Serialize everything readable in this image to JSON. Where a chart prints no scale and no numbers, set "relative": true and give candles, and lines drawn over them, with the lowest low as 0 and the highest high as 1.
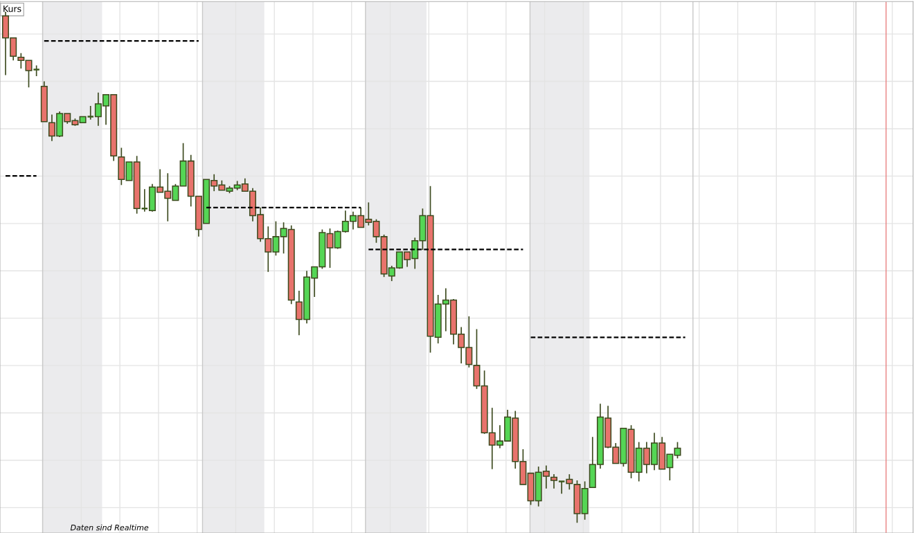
{
  "chart_data": {
    "type": "candlestick",
    "title": "Kurs",
    "relative": true,
    "grid": true,
    "annotations": [
      "Daten sind Realtime"
    ],
    "categories": [
      null,
      null,
      null,
      null,
      null,
      null,
      null,
      null,
      null,
      null,
      null,
      null,
      null,
      null,
      null,
      null,
      null,
      null,
      null,
      null,
      null,
      null,
      null,
      null,
      null,
      null,
      null,
      null,
      null,
      null,
      null,
      null,
      null,
      null,
      null,
      null,
      null,
      null,
      null,
      null,
      null,
      null,
      null,
      null,
      null,
      null,
      null,
      null,
      null,
      null,
      null,
      null,
      null,
      null,
      null,
      null,
      null,
      null,
      null,
      null,
      null,
      null,
      null,
      null,
      null,
      null,
      null,
      null,
      null,
      null,
      null,
      null,
      null,
      null,
      null,
      null,
      null,
      null,
      null,
      null,
      null,
      null,
      null,
      null,
      null,
      null,
      null,
      null,
      null,
      null,
      null,
      null,
      null,
      null,
      null,
      null,
      null,
      null,
      null,
      null,
      null,
      null,
      null,
      null,
      null,
      null,
      null,
      null,
      null,
      null,
      null,
      null,
      null,
      null,
      null,
      null,
      null,
      null
    ],
    "ohlc": [
      [
        0.992,
        1.0,
        0.876,
        0.949
      ],
      [
        0.949,
        0.949,
        0.905,
        0.913
      ],
      [
        0.911,
        0.919,
        0.889,
        0.905
      ],
      [
        0.905,
        0.905,
        0.852,
        0.885
      ],
      [
        0.887,
        0.895,
        0.874,
        0.887
      ],
      [
        0.854,
        0.864,
        0.785,
        0.785
      ],
      [
        0.783,
        0.799,
        0.747,
        0.757
      ],
      [
        0.757,
        0.805,
        0.755,
        0.801
      ],
      [
        0.801,
        0.801,
        0.781,
        0.785
      ],
      [
        0.787,
        0.791,
        0.777,
        0.779
      ],
      [
        0.783,
        0.795,
        0.783,
        0.795
      ],
      [
        0.795,
        0.816,
        0.789,
        0.795
      ],
      [
        0.795,
        0.842,
        0.777,
        0.82
      ],
      [
        0.816,
        0.838,
        0.779,
        0.838
      ],
      [
        0.838,
        0.838,
        0.708,
        0.718
      ],
      [
        0.716,
        0.734,
        0.661,
        0.672
      ],
      [
        0.67,
        0.706,
        0.67,
        0.706
      ],
      [
        0.706,
        0.718,
        0.605,
        0.615
      ],
      [
        0.615,
        0.653,
        0.609,
        0.615
      ],
      [
        0.611,
        0.663,
        0.609,
        0.657
      ],
      [
        0.657,
        0.692,
        0.647,
        0.647
      ],
      [
        0.649,
        0.684,
        0.59,
        0.635
      ],
      [
        0.631,
        0.663,
        0.631,
        0.659
      ],
      [
        0.659,
        0.743,
        0.659,
        0.708
      ],
      [
        0.708,
        0.72,
        0.619,
        0.639
      ],
      [
        0.639,
        0.639,
        0.56,
        0.574
      ],
      [
        0.586,
        0.672,
        0.586,
        0.672
      ],
      [
        0.67,
        0.682,
        0.649,
        0.659
      ],
      [
        0.661,
        0.67,
        0.651,
        0.651
      ],
      [
        0.649,
        0.659,
        0.645,
        0.655
      ],
      [
        0.655,
        0.669,
        0.651,
        0.661
      ],
      [
        0.663,
        0.674,
        0.649,
        0.649
      ],
      [
        0.649,
        0.655,
        0.59,
        0.601
      ],
      [
        0.603,
        0.617,
        0.55,
        0.556
      ],
      [
        0.556,
        0.58,
        0.491,
        0.53
      ],
      [
        0.53,
        0.59,
        0.523,
        0.56
      ],
      [
        0.56,
        0.588,
        0.527,
        0.576
      ],
      [
        0.574,
        0.582,
        0.428,
        0.436
      ],
      [
        0.432,
        0.454,
        0.367,
        0.398
      ],
      [
        0.398,
        0.493,
        0.39,
        0.481
      ],
      [
        0.479,
        0.501,
        0.442,
        0.501
      ],
      [
        0.501,
        0.574,
        0.497,
        0.568
      ],
      [
        0.566,
        0.576,
        0.499,
        0.538
      ],
      [
        0.538,
        0.572,
        0.536,
        0.57
      ],
      [
        0.57,
        0.611,
        0.568,
        0.59
      ],
      [
        0.59,
        0.609,
        0.574,
        0.601
      ],
      [
        0.601,
        0.617,
        0.578,
        0.578
      ],
      [
        0.594,
        0.627,
        0.582,
        0.588
      ],
      [
        0.59,
        0.594,
        0.548,
        0.56
      ],
      [
        0.56,
        0.564,
        0.481,
        0.487
      ],
      [
        0.483,
        0.503,
        0.473,
        0.499
      ],
      [
        0.499,
        0.53,
        0.497,
        0.53
      ],
      [
        0.53,
        0.53,
        0.501,
        0.515
      ],
      [
        0.517,
        0.558,
        0.497,
        0.552
      ],
      [
        0.552,
        0.615,
        0.534,
        0.601
      ],
      [
        0.601,
        0.659,
        0.333,
        0.365
      ],
      [
        0.363,
        0.446,
        0.351,
        0.428
      ],
      [
        0.428,
        0.459,
        0.375,
        0.436
      ],
      [
        0.436,
        0.438,
        0.349,
        0.369
      ],
      [
        0.369,
        0.383,
        0.312,
        0.343
      ],
      [
        0.343,
        0.404,
        0.304,
        0.31
      ],
      [
        0.308,
        0.379,
        0.262,
        0.268
      ],
      [
        0.268,
        0.298,
        0.174,
        0.176
      ],
      [
        0.176,
        0.225,
        0.105,
        0.152
      ],
      [
        0.152,
        0.191,
        0.146,
        0.16
      ],
      [
        0.16,
        0.221,
        0.16,
        0.207
      ],
      [
        0.205,
        0.219,
        0.106,
        0.12
      ],
      [
        0.12,
        0.144,
        0.075,
        0.075
      ],
      [
        0.097,
        0.097,
        0.035,
        0.043
      ],
      [
        0.043,
        0.11,
        0.032,
        0.099
      ],
      [
        0.101,
        0.112,
        0.067,
        0.091
      ],
      [
        0.089,
        0.095,
        0.067,
        0.083
      ],
      [
        0.081,
        0.081,
        0.057,
        0.081
      ],
      [
        0.085,
        0.095,
        0.065,
        0.077
      ],
      [
        0.075,
        0.083,
        0.0,
        0.018
      ],
      [
        0.018,
        0.081,
        0.006,
        0.067
      ],
      [
        0.069,
        0.168,
        0.069,
        0.114
      ],
      [
        0.114,
        0.233,
        0.106,
        0.207
      ],
      [
        0.205,
        0.229,
        0.146,
        0.148
      ],
      [
        0.148,
        0.156,
        0.116,
        0.116
      ],
      [
        0.116,
        0.185,
        0.11,
        0.185
      ],
      [
        0.183,
        0.191,
        0.087,
        0.099
      ],
      [
        0.099,
        0.158,
        0.081,
        0.146
      ],
      [
        0.146,
        0.158,
        0.097,
        0.114
      ],
      [
        0.114,
        0.176,
        0.103,
        0.156
      ],
      [
        0.156,
        0.168,
        0.105,
        0.105
      ],
      [
        0.108,
        0.134,
        0.083,
        0.134
      ],
      [
        0.132,
        0.158,
        0.126,
        0.146
      ],
      null,
      null,
      null,
      null,
      null,
      null,
      null,
      null,
      null,
      null,
      null,
      null,
      null,
      null,
      null,
      null,
      null,
      null,
      null,
      null,
      null,
      null,
      null,
      null,
      null,
      null,
      null,
      null,
      null,
      null
    ],
    "colors": [
      "#e8736c",
      "#e8736c",
      "#e8736c",
      "#e8736c",
      "#3c5a1e",
      "#e8736c",
      "#e8736c",
      "#55d655",
      "#e8736c",
      "#e8736c",
      "#55d655",
      "#3c5a1e",
      "#55d655",
      "#55d655",
      "#e8736c",
      "#e8736c",
      "#55d655",
      "#e8736c",
      "#3c5a1e",
      "#55d655",
      "#e8736c",
      "#e8736c",
      "#55d655",
      "#55d655",
      "#e8736c",
      "#e8736c",
      "#55d655",
      "#e8736c",
      "#e8736c",
      "#55d655",
      "#55d655",
      "#e8736c",
      "#e8736c",
      "#e8736c",
      "#e8736c",
      "#55d655",
      "#55d655",
      "#e8736c",
      "#e8736c",
      "#55d655",
      "#55d655",
      "#55d655",
      "#e8736c",
      "#55d655",
      "#55d655",
      "#55d655",
      "#e8736c",
      "#e8736c",
      "#e8736c",
      "#e8736c",
      "#55d655",
      "#55d655",
      "#e8736c",
      "#55d655",
      "#55d655",
      "#e8736c",
      "#55d655",
      "#55d655",
      "#e8736c",
      "#e8736c",
      "#e8736c",
      "#e8736c",
      "#e8736c",
      "#e8736c",
      "#55d655",
      "#55d655",
      "#e8736c",
      "#e8736c",
      "#e8736c",
      "#55d655",
      "#e8736c",
      "#e8736c",
      "#3c5a1e",
      "#e8736c",
      "#e8736c",
      "#55d655",
      "#55d655",
      "#55d655",
      "#e8736c",
      "#e8736c",
      "#55d655",
      "#e8736c",
      "#55d655",
      "#e8736c",
      "#55d655",
      "#e8736c",
      "#55d655",
      "#55d655",
      null,
      null,
      null,
      null,
      null,
      null,
      null,
      null,
      null,
      null,
      null,
      null,
      null,
      null,
      null,
      null,
      null,
      null,
      null,
      null,
      null,
      null,
      null,
      null,
      null,
      null,
      null,
      null,
      null,
      null
    ],
    "series": [
      {
        "type": "line",
        "line_style": "dashed",
        "color": "#000000",
        "values": [
          0.679,
          0.679,
          0.679,
          0.679,
          0.679,
          null,
          null,
          null,
          null,
          null,
          null,
          null,
          null,
          null,
          null,
          null,
          null,
          null,
          null,
          null,
          null,
          null,
          null,
          null,
          null,
          null,
          null,
          null,
          null,
          null,
          null,
          null,
          null,
          null,
          null,
          null,
          null,
          null,
          null,
          null,
          null,
          null,
          null,
          null,
          null,
          null,
          null,
          null,
          null,
          null,
          null,
          null,
          null,
          null,
          null,
          null,
          null,
          null,
          null,
          null,
          null,
          null,
          null,
          null,
          null,
          null,
          null,
          null,
          null,
          null,
          null,
          null,
          null,
          null,
          null,
          null,
          null,
          null,
          null,
          null,
          null,
          null,
          null,
          null,
          null,
          null,
          null,
          null,
          null,
          null,
          null,
          null,
          null,
          null,
          null,
          null,
          null,
          null,
          null,
          null,
          null,
          null,
          null,
          null,
          null,
          null,
          null,
          null,
          null,
          null,
          null,
          null,
          null,
          null,
          null,
          null,
          null,
          null
        ]
      },
      {
        "type": "line",
        "line_style": "dashed",
        "color": "#000000",
        "values": [
          null,
          null,
          null,
          null,
          null,
          0.943,
          0.943,
          0.943,
          0.943,
          0.943,
          0.943,
          0.943,
          0.943,
          0.943,
          0.943,
          0.943,
          0.943,
          0.943,
          0.943,
          0.943,
          0.943,
          0.943,
          0.943,
          0.943,
          0.943,
          0.943,
          null,
          null,
          null,
          null,
          null,
          null,
          null,
          null,
          null,
          null,
          null,
          null,
          null,
          null,
          null,
          null,
          null,
          null,
          null,
          null,
          null,
          null,
          null,
          null,
          null,
          null,
          null,
          null,
          null,
          null,
          null,
          null,
          null,
          null,
          null,
          null,
          null,
          null,
          null,
          null,
          null,
          null,
          null,
          null,
          null,
          null,
          null,
          null,
          null,
          null,
          null,
          null,
          null,
          null,
          null,
          null,
          null,
          null,
          null,
          null,
          null,
          null,
          null,
          null,
          null,
          null,
          null,
          null,
          null,
          null,
          null,
          null,
          null,
          null,
          null,
          null,
          null,
          null,
          null,
          null,
          null,
          null,
          null,
          null,
          null,
          null,
          null,
          null,
          null,
          null,
          null,
          null
        ]
      },
      {
        "type": "line",
        "line_style": "dashed",
        "color": "#000000",
        "values": [
          null,
          null,
          null,
          null,
          null,
          null,
          null,
          null,
          null,
          null,
          null,
          null,
          null,
          null,
          null,
          null,
          null,
          null,
          null,
          null,
          null,
          null,
          null,
          null,
          null,
          null,
          0.617,
          0.617,
          0.617,
          0.617,
          0.617,
          0.617,
          0.617,
          0.617,
          0.617,
          0.617,
          0.617,
          0.617,
          0.617,
          0.617,
          0.617,
          0.617,
          0.617,
          0.617,
          0.617,
          0.617,
          0.617,
          null,
          null,
          null,
          null,
          null,
          null,
          null,
          null,
          null,
          null,
          null,
          null,
          null,
          null,
          null,
          null,
          null,
          null,
          null,
          null,
          null,
          null,
          null,
          null,
          null,
          null,
          null,
          null,
          null,
          null,
          null,
          null,
          null,
          null,
          null,
          null,
          null,
          null,
          null,
          null,
          null,
          null,
          null,
          null,
          null,
          null,
          null,
          null,
          null,
          null,
          null,
          null,
          null,
          null,
          null,
          null,
          null,
          null,
          null,
          null,
          null,
          null,
          null,
          null,
          null,
          null,
          null,
          null,
          null,
          null,
          null
        ]
      },
      {
        "type": "line",
        "line_style": "dashed",
        "color": "#000000",
        "values": [
          null,
          null,
          null,
          null,
          null,
          null,
          null,
          null,
          null,
          null,
          null,
          null,
          null,
          null,
          null,
          null,
          null,
          null,
          null,
          null,
          null,
          null,
          null,
          null,
          null,
          null,
          null,
          null,
          null,
          null,
          null,
          null,
          null,
          null,
          null,
          null,
          null,
          null,
          null,
          null,
          null,
          null,
          null,
          null,
          null,
          null,
          null,
          0.535,
          0.535,
          0.535,
          0.535,
          0.535,
          0.535,
          0.535,
          0.535,
          0.535,
          0.535,
          0.535,
          0.535,
          0.535,
          0.535,
          0.535,
          0.535,
          0.535,
          0.535,
          0.535,
          0.535,
          0.535,
          null,
          null,
          null,
          null,
          null,
          null,
          null,
          null,
          null,
          null,
          null,
          null,
          null,
          null,
          null,
          null,
          null,
          null,
          null,
          null,
          null,
          null,
          null,
          null,
          null,
          null,
          null,
          null,
          null,
          null,
          null,
          null,
          null,
          null,
          null,
          null,
          null,
          null,
          null,
          null,
          null,
          null,
          null,
          null,
          null,
          null,
          null,
          null,
          null,
          null
        ]
      },
      {
        "type": "line",
        "line_style": "dashed",
        "color": "#000000",
        "values": [
          null,
          null,
          null,
          null,
          null,
          null,
          null,
          null,
          null,
          null,
          null,
          null,
          null,
          null,
          null,
          null,
          null,
          null,
          null,
          null,
          null,
          null,
          null,
          null,
          null,
          null,
          null,
          null,
          null,
          null,
          null,
          null,
          null,
          null,
          null,
          null,
          null,
          null,
          null,
          null,
          null,
          null,
          null,
          null,
          null,
          null,
          null,
          null,
          null,
          null,
          null,
          null,
          null,
          null,
          null,
          null,
          null,
          null,
          null,
          null,
          null,
          null,
          null,
          null,
          null,
          null,
          null,
          null,
          0.363,
          0.363,
          0.363,
          0.363,
          0.363,
          0.363,
          0.363,
          0.363,
          0.363,
          0.363,
          0.363,
          0.363,
          0.363,
          0.363,
          0.363,
          0.363,
          0.363,
          0.363,
          0.363,
          0.363,
          0.363,
          null,
          null,
          null,
          null,
          null,
          null,
          null,
          null,
          null,
          null,
          null,
          null,
          null,
          null,
          null,
          null,
          null,
          null,
          null,
          null,
          null,
          null,
          null,
          null,
          null,
          null,
          null,
          null,
          null
        ]
      }
    ]
  }
}
